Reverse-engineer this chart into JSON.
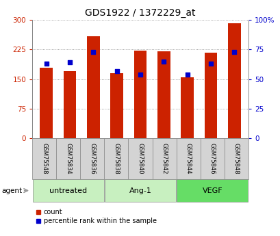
{
  "title": "GDS1922 / 1372229_at",
  "samples": [
    "GSM75548",
    "GSM75834",
    "GSM75836",
    "GSM75838",
    "GSM75840",
    "GSM75842",
    "GSM75844",
    "GSM75846",
    "GSM75848"
  ],
  "counts": [
    178,
    170,
    258,
    165,
    222,
    221,
    155,
    217,
    291
  ],
  "percentile_ranks": [
    63,
    64,
    73,
    57,
    54,
    65,
    54,
    63,
    73
  ],
  "groups": [
    {
      "label": "untreated",
      "indices": [
        0,
        1,
        2
      ],
      "color": "#c8f0c0"
    },
    {
      "label": "Ang-1",
      "indices": [
        3,
        4,
        5
      ],
      "color": "#c8f0c0"
    },
    {
      "label": "VEGF",
      "indices": [
        6,
        7,
        8
      ],
      "color": "#66dd66"
    }
  ],
  "bar_color": "#cc2200",
  "dot_color": "#0000cc",
  "ylim_left": [
    0,
    300
  ],
  "ylim_right": [
    0,
    100
  ],
  "yticks_left": [
    0,
    75,
    150,
    225,
    300
  ],
  "yticks_right": [
    0,
    25,
    50,
    75,
    100
  ],
  "yticklabels_right": [
    "0",
    "25",
    "50",
    "75",
    "100%"
  ],
  "grid_color": "#888888",
  "bg_color": "#ffffff",
  "bar_width": 0.55,
  "legend_count_label": "count",
  "legend_pct_label": "percentile rank within the sample"
}
